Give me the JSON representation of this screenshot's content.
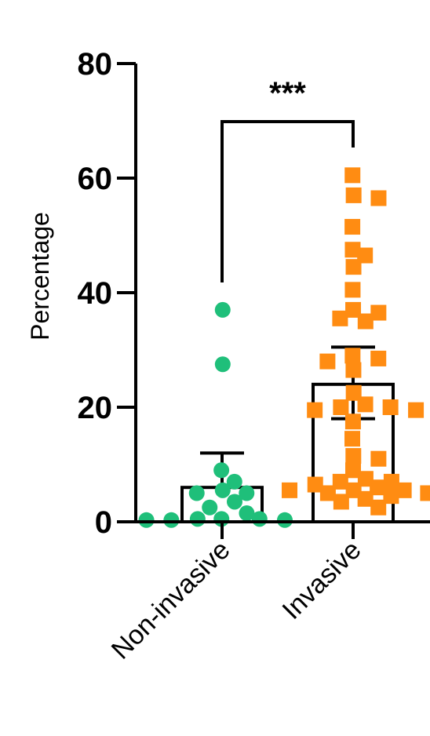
{
  "chart_data": {
    "type": "scatter",
    "ylabel": "Percentage",
    "ylim": [
      0,
      80
    ],
    "yticks": [
      0,
      20,
      40,
      60,
      80
    ],
    "categories": [
      "Non-invasive",
      "Invasive"
    ],
    "series": [
      {
        "category": "Non-invasive",
        "color": "#1fbf7a",
        "marker": "circle",
        "bar_value": 6,
        "error_upper": 12,
        "points": [
          37,
          27.5,
          9,
          7,
          5.5,
          5,
          5,
          3.5,
          2.5,
          1.5,
          0.5,
          0.5,
          0.5,
          0.3,
          0.3,
          0.3
        ]
      },
      {
        "category": "Invasive",
        "color": "#ff8c12",
        "marker": "square",
        "bar_value": 24,
        "error_upper": 30.5,
        "error_lower": 18,
        "points": [
          60.5,
          57,
          56.5,
          51.5,
          47.5,
          46.5,
          44.5,
          40.5,
          37,
          36.5,
          35.5,
          35,
          29,
          28.5,
          28,
          26.5,
          22.5,
          20.5,
          20,
          20,
          19.5,
          19.5,
          17.5,
          14.5,
          11.5,
          11,
          9,
          7.5,
          7,
          7,
          6.5,
          6,
          5.5,
          5.5,
          5.5,
          5,
          5,
          4.5,
          4,
          3.5,
          2.5
        ]
      }
    ],
    "significance": "***"
  }
}
